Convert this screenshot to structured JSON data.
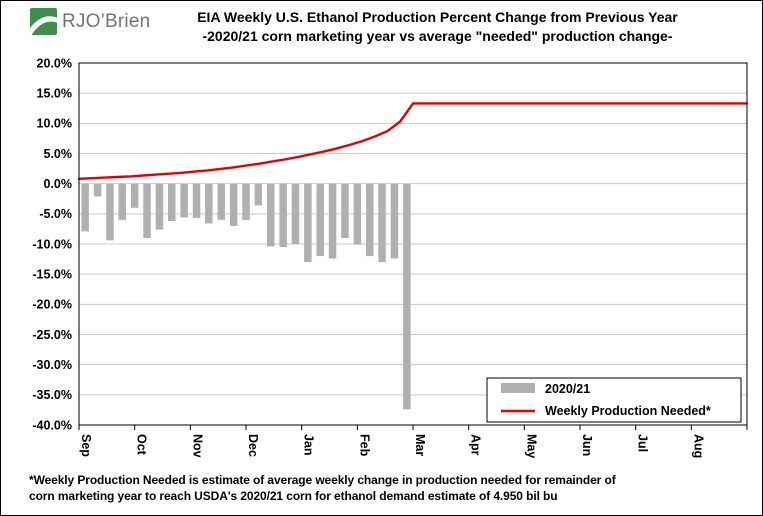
{
  "logo": {
    "text": "RJO’Brien",
    "green": "#3E8F4C",
    "text_color": "#70757A"
  },
  "chart_data": {
    "type": "combo_bar_line",
    "title_line1": "EIA Weekly U.S. Ethanol Production Percent Change from Previous Year",
    "title_line2": "-2020/21 corn marketing year vs average \"needed\" production change-",
    "x_months": [
      "Sep",
      "Oct",
      "Nov",
      "Dec",
      "Jan",
      "Feb",
      "Mar",
      "Apr",
      "May",
      "Jun",
      "Jul",
      "Aug"
    ],
    "ylim": [
      -40,
      20
    ],
    "ytick_step": 5,
    "ytick_labels": [
      "20.0%",
      "15.0%",
      "10.0%",
      "5.0%",
      "0.0%",
      "-5.0%",
      "-10.0%",
      "-15.0%",
      "-20.0%",
      "-25.0%",
      "-30.0%",
      "-35.0%",
      "-40.0%"
    ],
    "grid": "horizontal-only",
    "legend_position": "inside-bottom-right",
    "bars_cover": "weekly values Sep through Feb of marketing year",
    "series": [
      {
        "name": "2020/21",
        "type": "bar",
        "color": "#b0b0b0",
        "weekly_values_pct": [
          -7.9,
          -2.1,
          -9.4,
          -6.0,
          -4.0,
          -9.0,
          -7.6,
          -6.2,
          -5.6,
          -5.7,
          -6.6,
          -6.0,
          -7.0,
          -6.0,
          -3.6,
          -10.4,
          -10.5,
          -10.0,
          -13.0,
          -12.0,
          -12.4,
          -9.0,
          -10.1,
          -12.0,
          -13.0,
          -12.4,
          -37.4
        ]
      },
      {
        "name": "Weekly Production Needed*",
        "type": "line",
        "color": "#e60000",
        "note": "rises gradually Sep-Feb then flat at ~13.3% from Mar through Aug",
        "weekly_values_pct": [
          0.8,
          0.9,
          1.0,
          1.1,
          1.2,
          1.35,
          1.5,
          1.65,
          1.8,
          2.0,
          2.2,
          2.45,
          2.7,
          3.0,
          3.3,
          3.65,
          4.0,
          4.4,
          4.85,
          5.3,
          5.8,
          6.4,
          7.0,
          7.8,
          8.7,
          10.3,
          13.3,
          13.3,
          13.3,
          13.3,
          13.3,
          13.3,
          13.3,
          13.3,
          13.3,
          13.3,
          13.3,
          13.3,
          13.3,
          13.3,
          13.3,
          13.3,
          13.3,
          13.3,
          13.3,
          13.3,
          13.3,
          13.3,
          13.3,
          13.3,
          13.3,
          13.3,
          13.3
        ]
      }
    ]
  },
  "footnote": {
    "line1": "*Weekly Production Needed is estimate of average weekly change in production needed for remainder of",
    "line2": "corn marketing year to reach USDA's 2020/21 corn for ethanol demand estimate of 4.950 bil bu"
  }
}
